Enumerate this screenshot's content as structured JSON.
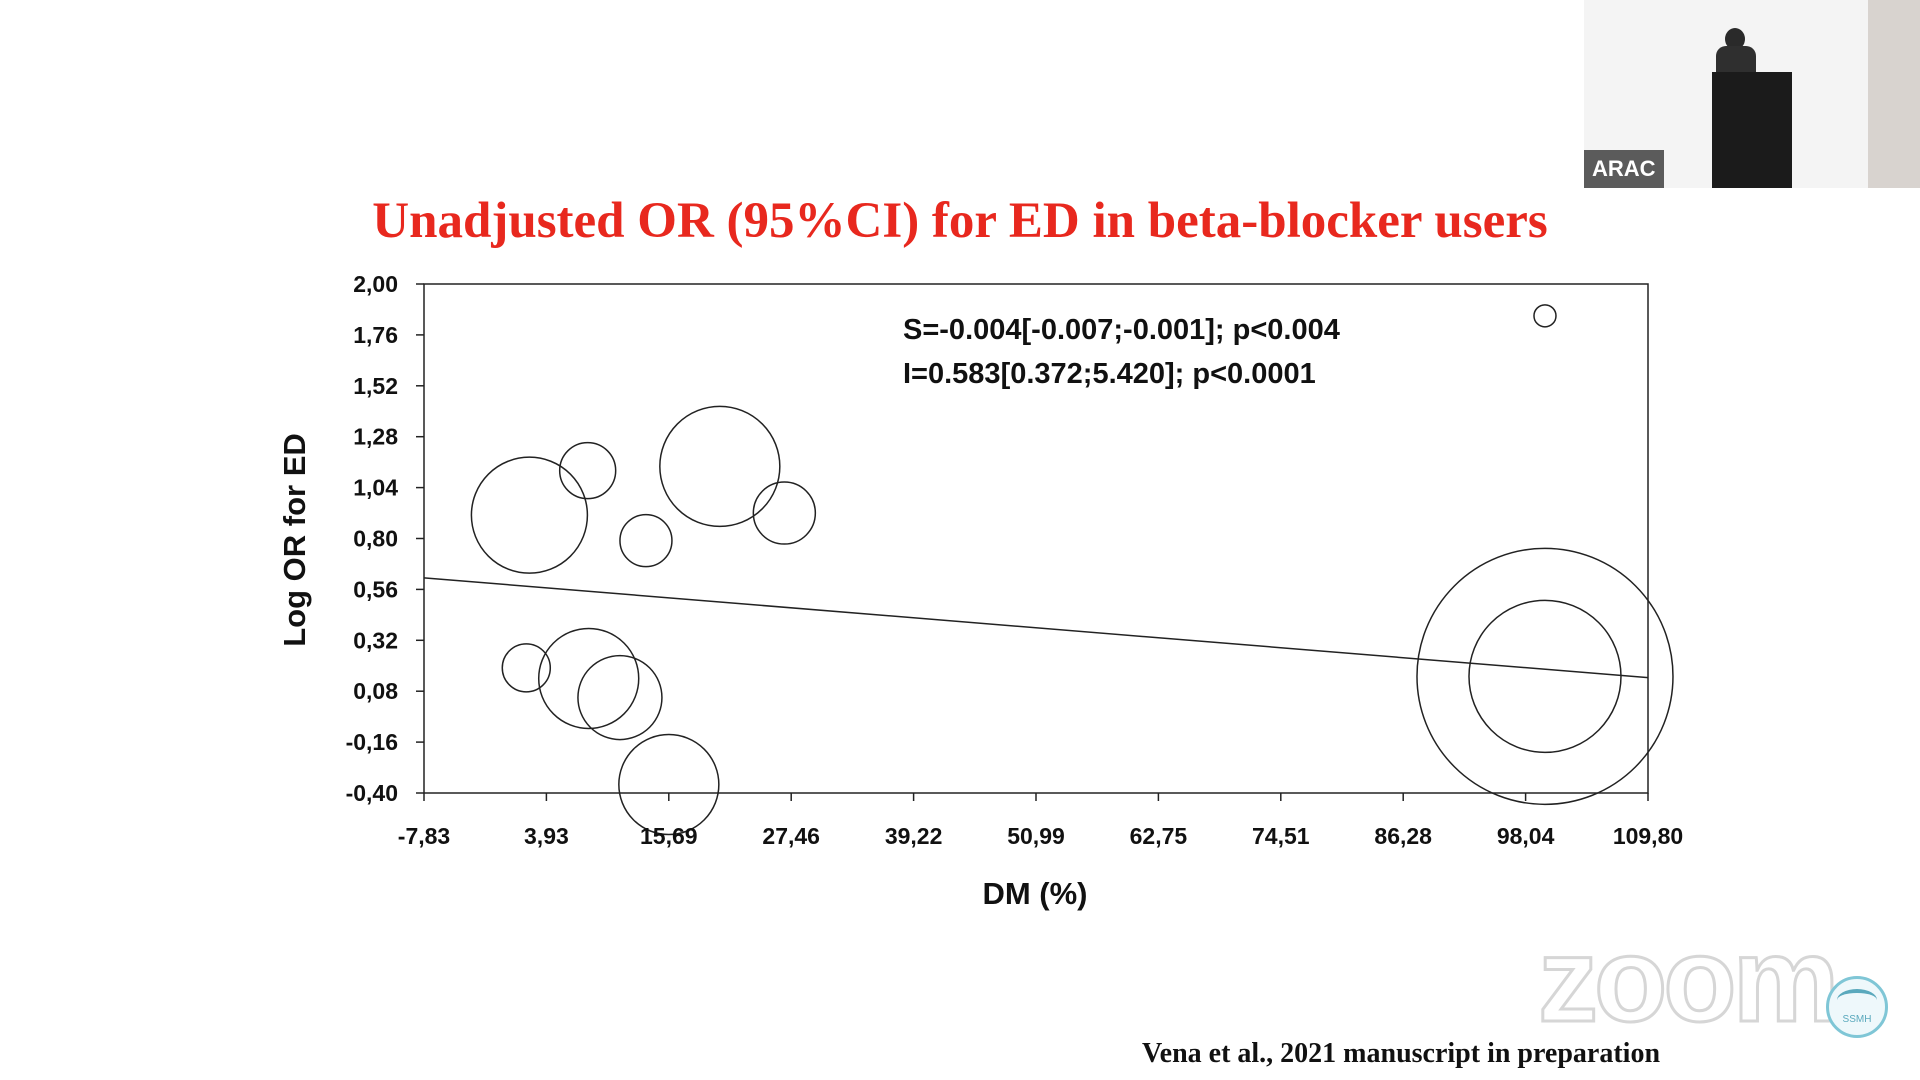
{
  "slide": {
    "title": "Unadjusted OR (95%CI) for ED in beta-blocker users",
    "citation": "Vena  et al., 2021 manuscript in preparation"
  },
  "chart_data": {
    "type": "scatter",
    "title": "Unadjusted OR (95%CI) for ED in beta-blocker users",
    "xlabel": "DM (%)",
    "ylabel": "Log OR for ED",
    "xlim": [
      -7.83,
      109.8
    ],
    "ylim": [
      -0.4,
      2.0
    ],
    "x_ticks": [
      "-7,83",
      "3,93",
      "15,69",
      "27,46",
      "39,22",
      "50,99",
      "62,75",
      "74,51",
      "86,28",
      "98,04",
      "109,80"
    ],
    "y_ticks": [
      "2,00",
      "1,76",
      "1,52",
      "1,28",
      "1,04",
      "0,80",
      "0,56",
      "0,32",
      "0,08",
      "-0,16",
      "-0,40"
    ],
    "grid": false,
    "legend": "none",
    "annotations": [
      "S=-0.004[-0.007;-0.001]; p<0.004",
      "I=0.583[0.372;5.420]; p<0.0001"
    ],
    "points": [
      {
        "x": 2.3,
        "y": 0.91,
        "weight": 58
      },
      {
        "x": 7.9,
        "y": 1.12,
        "weight": 28
      },
      {
        "x": 2.0,
        "y": 0.19,
        "weight": 24
      },
      {
        "x": 8.0,
        "y": 0.14,
        "weight": 50
      },
      {
        "x": 11.0,
        "y": 0.05,
        "weight": 42
      },
      {
        "x": 13.5,
        "y": 0.79,
        "weight": 26
      },
      {
        "x": 20.6,
        "y": 1.14,
        "weight": 60
      },
      {
        "x": 26.8,
        "y": 0.92,
        "weight": 31
      },
      {
        "x": 15.7,
        "y": -0.36,
        "weight": 50
      },
      {
        "x": 99.9,
        "y": 1.85,
        "weight": 11
      },
      {
        "x": 99.9,
        "y": 0.15,
        "weight": 76
      },
      {
        "x": 99.9,
        "y": 0.15,
        "weight": 128
      }
    ],
    "regression": {
      "slope": -0.004,
      "intercept": 0.583
    }
  },
  "overlay": {
    "video_name": "ARAC",
    "zoom_watermark": "zoom",
    "logo_text": "SSMH"
  }
}
